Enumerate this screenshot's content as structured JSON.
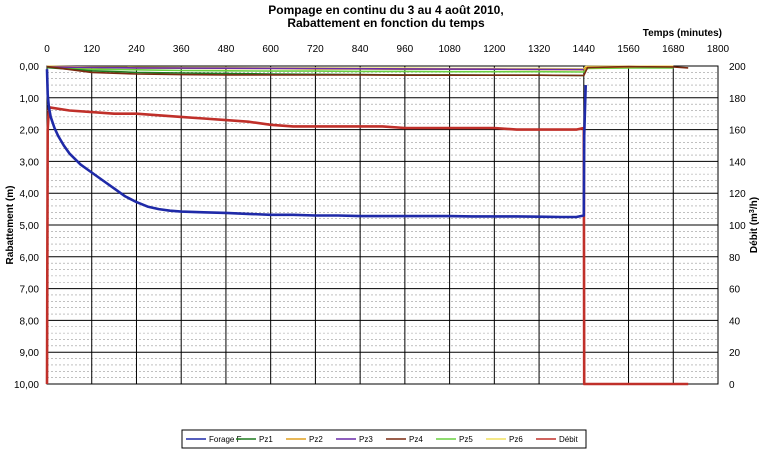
{
  "chart_data": {
    "type": "line",
    "title": "Pompage en continu du 3 au 4 août  2010,",
    "subtitle": "Rabattement en fonction du temps",
    "xlabel": "Temps (minutes)",
    "ylabel": "Rabattement (m)",
    "y2label": "Débit (m3/h)",
    "xlim": [
      0,
      1800
    ],
    "ylim": [
      10,
      0
    ],
    "y2lim": [
      0,
      200
    ],
    "x_ticks": [
      "0",
      "120",
      "240",
      "360",
      "480",
      "600",
      "720",
      "840",
      "960",
      "1080",
      "1200",
      "1320",
      "1440",
      "1560",
      "1680",
      "1800"
    ],
    "y_ticks": [
      "0,00",
      "1,00",
      "2,00",
      "3,00",
      "4,00",
      "5,00",
      "6,00",
      "7,00",
      "8,00",
      "9,00",
      "10,00"
    ],
    "y2_ticks": [
      "200",
      "180",
      "160",
      "140",
      "120",
      "100",
      "80",
      "60",
      "40",
      "20",
      "0"
    ],
    "x_axis_position": "top",
    "y_inverted": true,
    "grid": true,
    "legend_position": "bottom",
    "series": [
      {
        "name": "Forage F",
        "color": "#1f2aa8",
        "axis": "left",
        "x": [
          0,
          2,
          5,
          10,
          20,
          30,
          45,
          60,
          90,
          120,
          150,
          180,
          210,
          240,
          270,
          300,
          330,
          360,
          420,
          480,
          540,
          600,
          660,
          720,
          780,
          840,
          900,
          960,
          1020,
          1080,
          1140,
          1200,
          1260,
          1320,
          1380,
          1420,
          1440,
          1441,
          1445
        ],
        "y": [
          0.1,
          0.9,
          1.3,
          1.6,
          1.95,
          2.2,
          2.5,
          2.75,
          3.1,
          3.35,
          3.6,
          3.85,
          4.1,
          4.28,
          4.42,
          4.5,
          4.55,
          4.58,
          4.6,
          4.62,
          4.65,
          4.68,
          4.68,
          4.7,
          4.7,
          4.72,
          4.72,
          4.72,
          4.72,
          4.72,
          4.73,
          4.73,
          4.73,
          4.74,
          4.75,
          4.75,
          4.7,
          2.2,
          0.6
        ]
      },
      {
        "name": "Pz1",
        "color": "#1f7a1f",
        "axis": "left",
        "x": [
          0,
          120,
          240,
          360,
          480,
          600,
          720,
          840,
          960,
          1080,
          1200,
          1320,
          1440
        ],
        "y": [
          0.05,
          0.15,
          0.2,
          0.22,
          0.24,
          0.25,
          0.26,
          0.27,
          0.28,
          0.28,
          0.29,
          0.29,
          0.3
        ]
      },
      {
        "name": "Pz2",
        "color": "#e0a020",
        "axis": "left",
        "x": [
          0,
          120,
          240,
          360,
          480,
          600,
          720,
          840,
          960,
          1080,
          1200,
          1320,
          1440,
          1445,
          1500,
          1560,
          1620,
          1680
        ],
        "y": [
          0.02,
          0.05,
          0.06,
          0.07,
          0.08,
          0.08,
          0.09,
          0.09,
          0.1,
          0.1,
          0.1,
          0.11,
          0.12,
          0.05,
          0.04,
          0.03,
          0.02,
          0.02
        ]
      },
      {
        "name": "Pz3",
        "color": "#6a2aa8",
        "axis": "left",
        "x": [
          0,
          240,
          480,
          720,
          960,
          1200,
          1440
        ],
        "y": [
          0.03,
          0.06,
          0.07,
          0.08,
          0.09,
          0.1,
          0.11
        ]
      },
      {
        "name": "Pz4",
        "color": "#7a2a10",
        "axis": "left",
        "x": [
          0,
          120,
          240,
          360,
          480,
          600,
          720,
          840,
          960,
          1080,
          1200,
          1320,
          1440,
          1450,
          1560,
          1680,
          1720
        ],
        "y": [
          0.02,
          0.2,
          0.25,
          0.27,
          0.28,
          0.28,
          0.28,
          0.28,
          0.29,
          0.29,
          0.29,
          0.29,
          0.3,
          0.05,
          0.02,
          0.03,
          0.06
        ]
      },
      {
        "name": "Pz5",
        "color": "#6ad040",
        "axis": "left",
        "x": [
          0,
          120,
          240,
          360,
          480,
          600,
          720,
          840,
          960,
          1080,
          1200,
          1320,
          1440,
          1450,
          1560,
          1680
        ],
        "y": [
          0.04,
          0.1,
          0.12,
          0.14,
          0.15,
          0.16,
          0.16,
          0.17,
          0.17,
          0.18,
          0.18,
          0.18,
          0.19,
          0.08,
          0.06,
          0.06
        ]
      },
      {
        "name": "Pz6",
        "color": "#f0e060",
        "axis": "left",
        "x": [
          0,
          120,
          240,
          360,
          480,
          600,
          720,
          840,
          960,
          1080,
          1200,
          1320,
          1440,
          1445,
          1560,
          1680
        ],
        "y": [
          0.01,
          0.03,
          0.04,
          0.05,
          0.05,
          0.06,
          0.06,
          0.07,
          0.07,
          0.08,
          0.08,
          0.08,
          0.09,
          0.02,
          0.01,
          0.01
        ]
      },
      {
        "name": "Débit",
        "color": "#c0302a",
        "axis": "right",
        "x": [
          0,
          2,
          5,
          60,
          120,
          180,
          240,
          300,
          360,
          420,
          480,
          540,
          600,
          660,
          720,
          780,
          840,
          900,
          960,
          1020,
          1080,
          1140,
          1200,
          1260,
          1320,
          1380,
          1420,
          1440,
          1441,
          1500,
          1600,
          1720
        ],
        "y": [
          0,
          160,
          174,
          172,
          171,
          170,
          170,
          169,
          168,
          167,
          166,
          165,
          163,
          162,
          162,
          162,
          162,
          162,
          161,
          161,
          161,
          161,
          161,
          160,
          160,
          160,
          160,
          161,
          0,
          0,
          0,
          0
        ]
      }
    ]
  }
}
